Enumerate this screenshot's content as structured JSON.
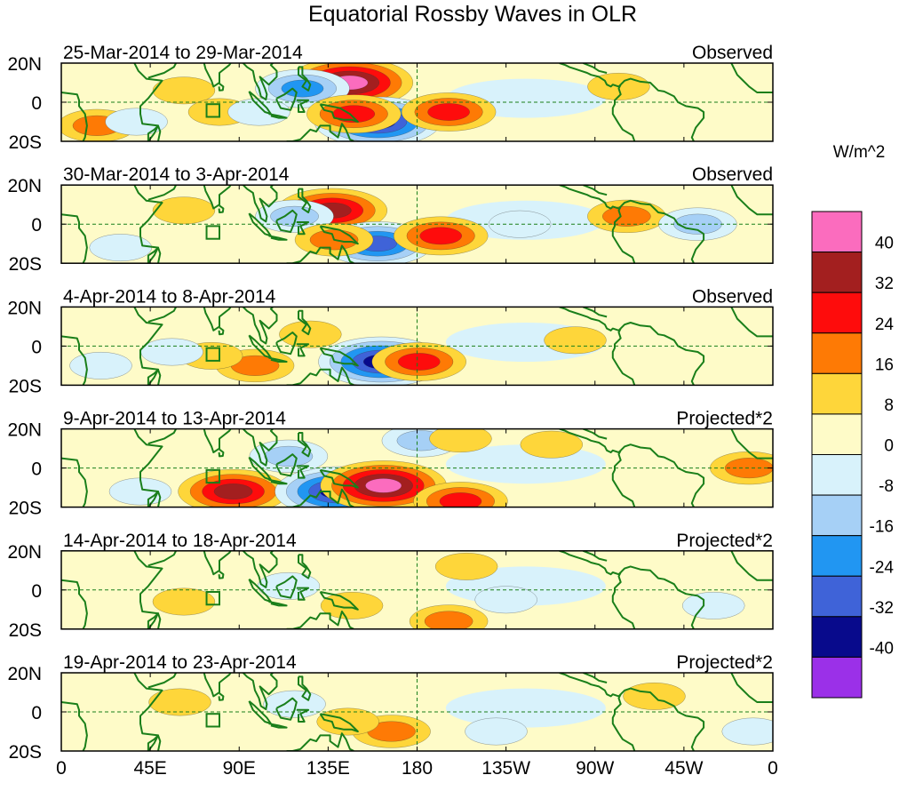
{
  "chart_data": {
    "type": "heatmap",
    "title": "Equatorial Rossby Waves in OLR",
    "units_label": "W/m^2",
    "x_range_deg_east": [
      0,
      360
    ],
    "y_range_deg": [
      -20,
      20
    ],
    "x_ticks": [
      {
        "lon": 0,
        "label": "0"
      },
      {
        "lon": 45,
        "label": "45E"
      },
      {
        "lon": 90,
        "label": "90E"
      },
      {
        "lon": 135,
        "label": "135E"
      },
      {
        "lon": 180,
        "label": "180"
      },
      {
        "lon": 225,
        "label": "135W"
      },
      {
        "lon": 270,
        "label": "90W"
      },
      {
        "lon": 315,
        "label": "45W"
      },
      {
        "lon": 360,
        "label": "0"
      }
    ],
    "y_ticks": [
      {
        "lat": 20,
        "label": "20N"
      },
      {
        "lat": 0,
        "label": "0"
      },
      {
        "lat": -20,
        "label": "20S"
      }
    ],
    "colorbar": {
      "colors": [
        "#9b30e8",
        "#080a8c",
        "#3f63d8",
        "#2196f2",
        "#a6d0f6",
        "#d8f2fb",
        "#fefbc8",
        "#fed63a",
        "#fe7a05",
        "#fe0c0c",
        "#a31f1f",
        "#fb6cbe"
      ],
      "labels": [
        "-40",
        "-32",
        "-24",
        "-16",
        "-8",
        "0",
        "8",
        "16",
        "24",
        "32",
        "40"
      ]
    },
    "panels": [
      {
        "date_range": "25-Mar-2014 to 29-Mar-2014",
        "kind": "Observed",
        "features": [
          {
            "lon": 146,
            "lat": 10,
            "value": 42
          },
          {
            "lon": 122,
            "lat": 7,
            "value": -26
          },
          {
            "lon": 160,
            "lat": -10,
            "value": -44
          },
          {
            "lon": 148,
            "lat": -6,
            "value": 26
          },
          {
            "lon": 196,
            "lat": -5,
            "value": 28
          },
          {
            "lon": 62,
            "lat": 6,
            "value": 12
          },
          {
            "lon": 80,
            "lat": -5,
            "value": 14
          },
          {
            "lon": 18,
            "lat": -12,
            "value": 18
          },
          {
            "lon": 38,
            "lat": -10,
            "value": -14
          },
          {
            "lon": 100,
            "lat": -5,
            "value": -14
          },
          {
            "lon": 282,
            "lat": 8,
            "value": 9
          }
        ]
      },
      {
        "date_range": "30-Mar-2014 to 3-Apr-2014",
        "kind": "Observed",
        "features": [
          {
            "lon": 137,
            "lat": 7,
            "value": 32
          },
          {
            "lon": 160,
            "lat": -10,
            "value": -38
          },
          {
            "lon": 192,
            "lat": -6,
            "value": 30
          },
          {
            "lon": 118,
            "lat": 4,
            "value": -16
          },
          {
            "lon": 62,
            "lat": 7,
            "value": 12
          },
          {
            "lon": 138,
            "lat": -8,
            "value": 18
          },
          {
            "lon": 286,
            "lat": 4,
            "value": 18
          },
          {
            "lon": 322,
            "lat": 0,
            "value": -16
          },
          {
            "lon": 30,
            "lat": -12,
            "value": -14
          },
          {
            "lon": 232,
            "lat": 0,
            "value": -12
          }
        ]
      },
      {
        "date_range": "4-Apr-2014 to 8-Apr-2014",
        "kind": "Observed",
        "features": [
          {
            "lon": 162,
            "lat": -8,
            "value": -42
          },
          {
            "lon": 181,
            "lat": -8,
            "value": 30
          },
          {
            "lon": 98,
            "lat": -10,
            "value": 18
          },
          {
            "lon": 126,
            "lat": 6,
            "value": 14
          },
          {
            "lon": 76,
            "lat": -5,
            "value": 12
          },
          {
            "lon": 56,
            "lat": -3,
            "value": -12
          },
          {
            "lon": 20,
            "lat": -10,
            "value": -14
          },
          {
            "lon": 260,
            "lat": 3,
            "value": 9
          }
        ]
      },
      {
        "date_range": "9-Apr-2014 to 13-Apr-2014",
        "kind": "Projected*2",
        "features": [
          {
            "lon": 87,
            "lat": -12,
            "value": 34
          },
          {
            "lon": 140,
            "lat": -12,
            "value": -40
          },
          {
            "lon": 163,
            "lat": -9,
            "value": 44
          },
          {
            "lon": 202,
            "lat": -17,
            "value": 30
          },
          {
            "lon": 182,
            "lat": 14,
            "value": -20
          },
          {
            "lon": 202,
            "lat": 15,
            "value": 14
          },
          {
            "lon": 115,
            "lat": 6,
            "value": -16
          },
          {
            "lon": 348,
            "lat": 0,
            "value": 18
          },
          {
            "lon": 248,
            "lat": 12,
            "value": 10
          },
          {
            "lon": 40,
            "lat": -12,
            "value": -12
          }
        ]
      },
      {
        "date_range": "14-Apr-2014 to 18-Apr-2014",
        "kind": "Projected*2",
        "features": [
          {
            "lon": 196,
            "lat": -16,
            "value": 22
          },
          {
            "lon": 147,
            "lat": -8,
            "value": 14
          },
          {
            "lon": 205,
            "lat": 12,
            "value": 12
          },
          {
            "lon": 115,
            "lat": 2,
            "value": -12
          },
          {
            "lon": 225,
            "lat": -5,
            "value": -12
          },
          {
            "lon": 62,
            "lat": -6,
            "value": 9
          },
          {
            "lon": 330,
            "lat": -8,
            "value": -9
          }
        ]
      },
      {
        "date_range": "19-Apr-2014 to 23-Apr-2014",
        "kind": "Projected*2",
        "features": [
          {
            "lon": 167,
            "lat": -10,
            "value": 22
          },
          {
            "lon": 145,
            "lat": -5,
            "value": 9
          },
          {
            "lon": 118,
            "lat": 4,
            "value": -10
          },
          {
            "lon": 220,
            "lat": -10,
            "value": -12
          },
          {
            "lon": 60,
            "lat": 5,
            "value": 9
          },
          {
            "lon": 300,
            "lat": 8,
            "value": 8
          },
          {
            "lon": 350,
            "lat": -10,
            "value": -10
          }
        ]
      }
    ]
  }
}
